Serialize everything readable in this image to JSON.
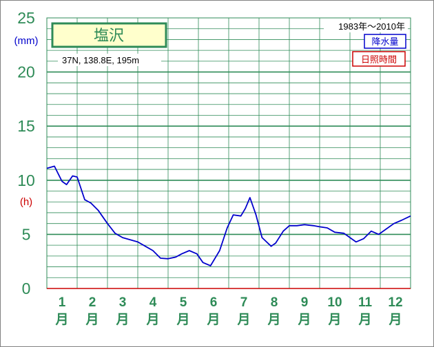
{
  "chart_data": {
    "type": "line",
    "station": "塩沢",
    "location": "37N,  138.8E,  195m",
    "period": "1983年～2010年",
    "legend": [
      "降水量",
      "日照時間"
    ],
    "y_ticks": [
      "0",
      "5",
      "10",
      "15",
      "20",
      "25"
    ],
    "unit_top": "(mm)",
    "unit_mid": "(h)",
    "ylim": [
      0,
      25
    ],
    "x_range": [
      0.5,
      12.5
    ],
    "months": [
      {
        "num": "1",
        "suffix": "月"
      },
      {
        "num": "2",
        "suffix": "月"
      },
      {
        "num": "3",
        "suffix": "月"
      },
      {
        "num": "4",
        "suffix": "月"
      },
      {
        "num": "5",
        "suffix": "月"
      },
      {
        "num": "6",
        "suffix": "月"
      },
      {
        "num": "7",
        "suffix": "月"
      },
      {
        "num": "8",
        "suffix": "月"
      },
      {
        "num": "9",
        "suffix": "月"
      },
      {
        "num": "10",
        "suffix": "月"
      },
      {
        "num": "11",
        "suffix": "月"
      },
      {
        "num": "12",
        "suffix": "月"
      }
    ],
    "series": [
      {
        "name": "降水量",
        "x": [
          0.5,
          0.75,
          1.0,
          1.15,
          1.35,
          1.5,
          1.75,
          1.95,
          2.2,
          2.5,
          2.75,
          3.0,
          3.25,
          3.5,
          3.75,
          4.0,
          4.25,
          4.5,
          4.75,
          4.95,
          5.2,
          5.45,
          5.65,
          5.9,
          6.2,
          6.45,
          6.65,
          6.9,
          7.05,
          7.2,
          7.4,
          7.6,
          7.9,
          8.05,
          8.3,
          8.5,
          8.75,
          9.0,
          9.3,
          9.5,
          9.75,
          10.0,
          10.3,
          10.45,
          10.7,
          10.95,
          11.2,
          11.45,
          11.7,
          11.95,
          12.2,
          12.5
        ],
        "values": [
          11.1,
          11.3,
          9.9,
          9.6,
          10.4,
          10.3,
          8.2,
          7.9,
          7.2,
          6.0,
          5.1,
          4.7,
          4.5,
          4.3,
          3.9,
          3.5,
          2.8,
          2.75,
          2.9,
          3.2,
          3.5,
          3.2,
          2.4,
          2.1,
          3.5,
          5.6,
          6.8,
          6.7,
          7.4,
          8.4,
          6.8,
          4.7,
          3.9,
          4.2,
          5.3,
          5.8,
          5.8,
          5.9,
          5.8,
          5.7,
          5.6,
          5.2,
          5.1,
          4.8,
          4.3,
          4.6,
          5.3,
          5.0,
          5.5,
          6.0,
          6.3,
          6.7
        ]
      }
    ]
  }
}
